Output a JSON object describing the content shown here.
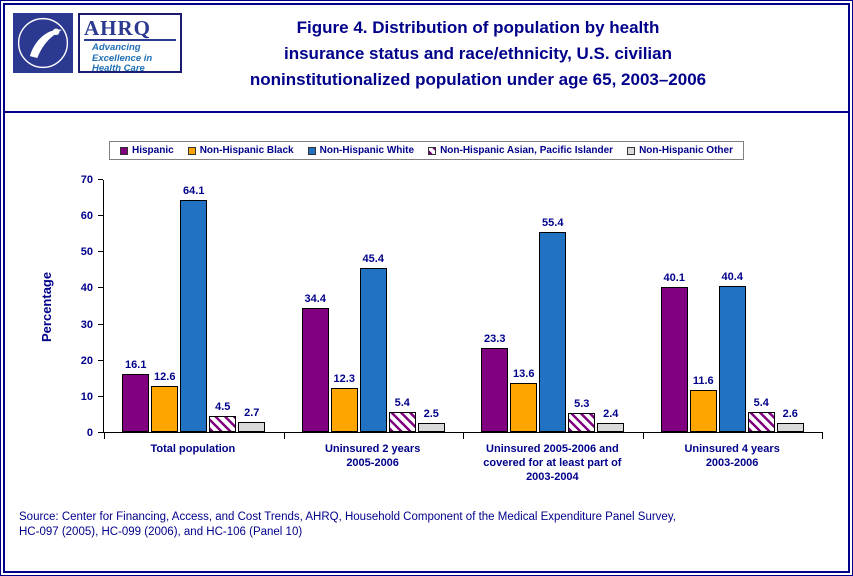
{
  "page": {
    "title": "Figure 4. Distribution of population by health\ninsurance status and race/ethnicity, U.S. civilian\nnoninstitutionalized population under age 65, 2003–2006",
    "source": "Source: Center for Financing, Access, and Cost Trends, AHRQ, Household Component of the Medical Expenditure Panel Survey,\nHC-097 (2005), HC-099 (2006), and HC-106 (Panel 10)"
  },
  "logos": {
    "ahrq_name": "AHRQ",
    "ahrq_tagline": "Advancing\nExcellence in\nHealth Care"
  },
  "chart_data": {
    "type": "bar",
    "title": "Distribution of population by health insurance status and race/ethnicity, U.S. civilian noninstitutionalized population under age 65, 2003–2006",
    "ylabel": "Percentage",
    "ylim": [
      0,
      70
    ],
    "ytick_step": 10,
    "grid": false,
    "legend_position": "top",
    "categories": [
      "Total population",
      "Uninsured 2 years\n2005-2006",
      "Uninsured 2005-2006 and\ncovered for at least part of\n2003-2004",
      "Uninsured 4 years\n2003-2006"
    ],
    "series": [
      {
        "name": "Hispanic",
        "color": "#800080",
        "pattern": "solid",
        "values": [
          16.1,
          34.4,
          23.3,
          40.1
        ]
      },
      {
        "name": "Non-Hispanic Black",
        "color": "#FFA500",
        "pattern": "solid",
        "values": [
          12.6,
          12.3,
          13.6,
          11.6
        ]
      },
      {
        "name": "Non-Hispanic White",
        "color": "#2272C3",
        "pattern": "solid",
        "values": [
          64.1,
          45.4,
          55.4,
          40.4
        ]
      },
      {
        "name": "Non-Hispanic Asian, Pacific Islander",
        "color": "#800080",
        "pattern": "hatch",
        "values": [
          4.5,
          5.4,
          5.3,
          5.4
        ]
      },
      {
        "name": "Non-Hispanic Other",
        "color": "#D9D9D9",
        "pattern": "solid",
        "values": [
          2.7,
          2.5,
          2.4,
          2.6
        ]
      }
    ]
  }
}
